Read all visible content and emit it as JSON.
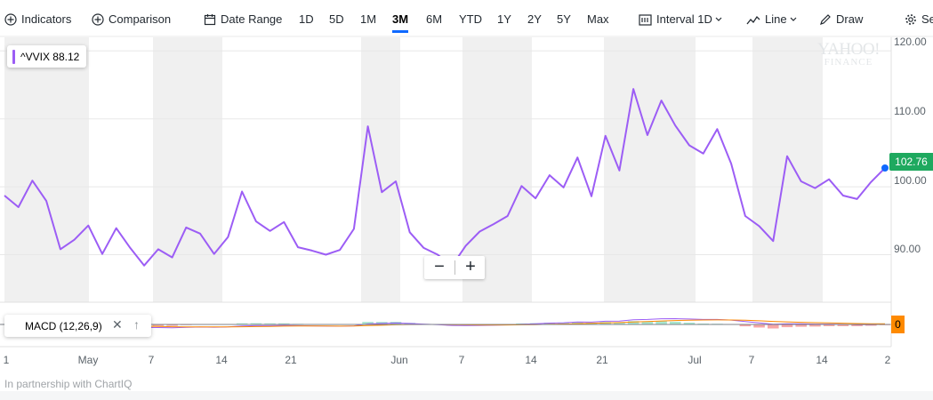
{
  "toolbar": {
    "indicators": "Indicators",
    "comparison": "Comparison",
    "date_range": "Date Range",
    "ranges": [
      "1D",
      "5D",
      "1M",
      "3M",
      "6M",
      "YTD",
      "1Y",
      "2Y",
      "5Y",
      "Max"
    ],
    "active_range": "3M",
    "interval_label": "Interval",
    "interval_value": "1D",
    "chart_type": "Line",
    "draw": "Draw",
    "settings": "Se"
  },
  "legend": {
    "label": "^VVIX 88.12",
    "color": "#9c5df5"
  },
  "price_tag": {
    "value": "102.76",
    "color": "#1ea95f"
  },
  "zoom": {
    "minus": "−",
    "plus": "+"
  },
  "macd": {
    "label": "MACD (12,26,9)",
    "close": "✕",
    "move_up": "↑",
    "zero_label": "0"
  },
  "watermark": {
    "line1": "YAHOO!",
    "line2": "FINANCE"
  },
  "footer": "In partnership with ChartIQ",
  "chart_data": {
    "type": "line",
    "series": [
      {
        "name": "^VVIX",
        "values": [
          98.7,
          97.0,
          100.9,
          97.9,
          90.8,
          92.2,
          94.3,
          90.1,
          93.9,
          91.0,
          88.4,
          90.8,
          89.6,
          94.0,
          93.1,
          90.1,
          92.6,
          99.3,
          94.9,
          93.5,
          94.8,
          91.1,
          90.6,
          90.0,
          90.7,
          93.8,
          108.9,
          99.2,
          100.8,
          93.3,
          91.0,
          90.0,
          88.3,
          91.3,
          93.4,
          94.5,
          95.7,
          100.1,
          98.3,
          101.7,
          99.9,
          104.3,
          98.6,
          107.5,
          102.4,
          114.4,
          107.6,
          112.7,
          109.0,
          106.1,
          104.9,
          108.5,
          103.4,
          95.7,
          94.2,
          92.0,
          104.5,
          100.8,
          99.8,
          101.1,
          98.7,
          98.2,
          100.7,
          102.76
        ]
      }
    ],
    "x_tick_labels": [
      "1",
      "May",
      "7",
      "14",
      "21",
      "Jun",
      "7",
      "14",
      "21",
      "Jul",
      "7",
      "14",
      "2"
    ],
    "ylim": [
      83,
      122
    ],
    "y_ticks": [
      "120.00",
      "110.00",
      "100.00",
      "90.00"
    ],
    "last_value": 102.76,
    "line_color": "#9c5df5",
    "macd": {
      "macd_line_color": "#9c5df5",
      "signal_line_color": "#fe8a00",
      "positive_histogram_color": "#a8e6cf",
      "negative_histogram_color": "#f7a6a6"
    }
  }
}
